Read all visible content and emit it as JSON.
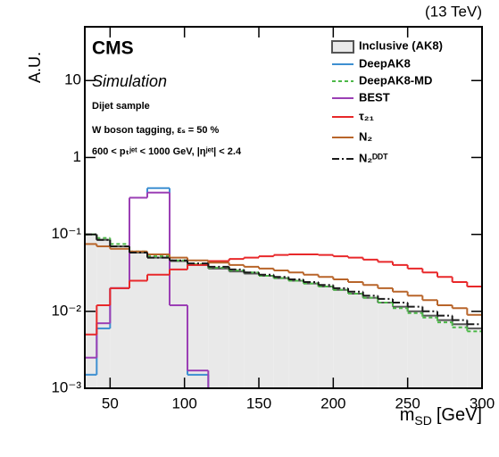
{
  "chart_data": {
    "type": "histogram",
    "top_label": "(13 TeV)",
    "y_label": "A.U.",
    "x_label": [
      "m",
      "SD",
      "[GeV]"
    ],
    "annotations": [
      "CMS",
      "Simulation",
      "Dijet sample",
      "W boson tagging, εₛ = 50 %",
      "600 < pₜʲᵉᵗ < 1000 GeV, |ηʲᵉᵗ| < 2.4"
    ],
    "log_y": true,
    "xlim": [
      33,
      300
    ],
    "ylim": [
      0.001,
      50
    ],
    "xticks": [
      50,
      100,
      150,
      200,
      250,
      300
    ],
    "yticks": [
      {
        "value": 0.001,
        "label": "10⁻³"
      },
      {
        "value": 0.01,
        "label": "10⁻²"
      },
      {
        "value": 0.1,
        "label": "10⁻¹"
      },
      1,
      10
    ],
    "bins": [
      33,
      41,
      50,
      63,
      75,
      90,
      102,
      116,
      130,
      140,
      150,
      160,
      170,
      180,
      190,
      200,
      210,
      220,
      230,
      240,
      250,
      260,
      270,
      280,
      290,
      300
    ],
    "series": [
      {
        "name": "Inclusive (AK8)",
        "color": "#555555",
        "fill": "#e9e9e9",
        "style": "filled",
        "values": [
          0.1,
          0.085,
          0.07,
          0.058,
          0.05,
          0.045,
          0.04,
          0.036,
          0.033,
          0.031,
          0.029,
          0.027,
          0.025,
          0.023,
          0.021,
          0.019,
          0.017,
          0.015,
          0.013,
          0.0115,
          0.01,
          0.0088,
          0.0077,
          0.0068,
          0.006
        ]
      },
      {
        "name": "DeepAK8",
        "color": "#3d8fd1",
        "style": "solid",
        "values": [
          0.0015,
          0.006,
          0.02,
          0.3,
          0.4,
          0.012,
          0.0015,
          null,
          null,
          null,
          null,
          null,
          null,
          null,
          null,
          null,
          null,
          null,
          null,
          null,
          null,
          null,
          null,
          null,
          null
        ]
      },
      {
        "name": "DeepAK8-MD",
        "color": "#4cb848",
        "style": "dashed",
        "values": [
          0.1,
          0.09,
          0.075,
          0.06,
          0.052,
          0.046,
          0.041,
          0.037,
          0.034,
          0.032,
          0.029,
          0.027,
          0.025,
          0.023,
          0.021,
          0.019,
          0.017,
          0.015,
          0.013,
          0.011,
          0.0095,
          0.0083,
          0.0072,
          0.0062,
          0.0055
        ]
      },
      {
        "name": "BEST",
        "color": "#9b3fb5",
        "style": "solid",
        "values": [
          0.0025,
          0.007,
          0.02,
          0.3,
          0.35,
          0.012,
          0.0017,
          null,
          null,
          null,
          null,
          null,
          null,
          null,
          null,
          null,
          null,
          null,
          null,
          null,
          null,
          null,
          null,
          null,
          null
        ]
      },
      {
        "name": "τ₂₁",
        "color": "#e8282a",
        "style": "solid",
        "values": [
          0.005,
          0.012,
          0.02,
          0.025,
          0.03,
          0.035,
          0.04,
          0.045,
          0.048,
          0.05,
          0.052,
          0.054,
          0.055,
          0.055,
          0.054,
          0.052,
          0.05,
          0.047,
          0.044,
          0.04,
          0.036,
          0.032,
          0.028,
          0.024,
          0.021
        ]
      },
      {
        "name": "N₂",
        "color": "#b8652a",
        "style": "solid",
        "values": [
          0.075,
          0.07,
          0.065,
          0.06,
          0.055,
          0.05,
          0.046,
          0.043,
          0.04,
          0.038,
          0.036,
          0.034,
          0.032,
          0.03,
          0.028,
          0.026,
          0.024,
          0.022,
          0.02,
          0.018,
          0.016,
          0.014,
          0.012,
          0.011,
          0.009
        ]
      },
      {
        "name": "N₂ᴰᴰᵀ",
        "color": "#1a1a1a",
        "style": "dashdot",
        "values": [
          0.1,
          0.085,
          0.07,
          0.058,
          0.05,
          0.046,
          0.042,
          0.038,
          0.035,
          0.032,
          0.03,
          0.028,
          0.026,
          0.024,
          0.022,
          0.02,
          0.018,
          0.016,
          0.0145,
          0.013,
          0.0115,
          0.01,
          0.0088,
          0.0077,
          0.0068
        ]
      }
    ]
  }
}
